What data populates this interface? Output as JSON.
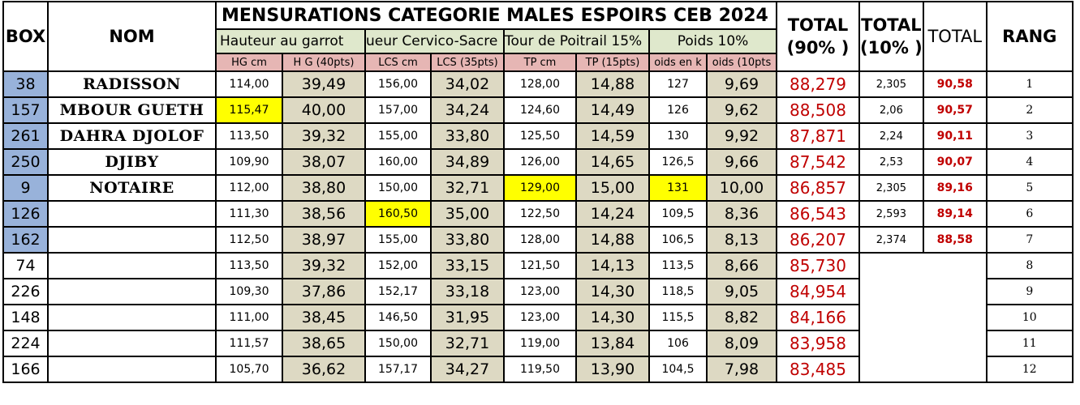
{
  "title": "MENSURATIONS CATEGORIE MALES ESPOIRS CEB 2024",
  "headers": {
    "box": "BOX",
    "nom": "NOM",
    "groups": [
      "Hauteur au garrot",
      "ueur Cervico-Sacre",
      "Tour de Poitrail 15%",
      "Poids 10%"
    ],
    "units": [
      "HG cm",
      "H G (40pts)",
      "LCS cm",
      "LCS (35pts)",
      "TP cm",
      "TP (15pts)",
      "oids en k",
      "oids (10pts"
    ],
    "total90_line1": "TOTAL",
    "total90_line2": "(90% )",
    "total10_line1": "TOTAL",
    "total10_line2": "(10% )",
    "total": "TOTAL",
    "rang": "RANG"
  },
  "rows": [
    {
      "box": "38",
      "nom": "RADISSON",
      "hg": "114,00",
      "hgp": "39,49",
      "lcs": "156,00",
      "lcsp": "34,02",
      "tp": "128,00",
      "tpp": "14,88",
      "pds": "127",
      "pdsp": "9,69",
      "t90": "88,279",
      "t10": "2,305",
      "total": "90,58",
      "rang": "1"
    },
    {
      "box": "157",
      "nom": "MBOUR GUETH",
      "hg": "115,47",
      "hgp": "40,00",
      "lcs": "157,00",
      "lcsp": "34,24",
      "tp": "124,60",
      "tpp": "14,49",
      "pds": "126",
      "pdsp": "9,62",
      "t90": "88,508",
      "t10": "2,06",
      "total": "90,57",
      "rang": "2"
    },
    {
      "box": "261",
      "nom": "DAHRA DJOLOF",
      "hg": "113,50",
      "hgp": "39,32",
      "lcs": "155,00",
      "lcsp": "33,80",
      "tp": "125,50",
      "tpp": "14,59",
      "pds": "130",
      "pdsp": "9,92",
      "t90": "87,871",
      "t10": "2,24",
      "total": "90,11",
      "rang": "3"
    },
    {
      "box": "250",
      "nom": "DJIBY",
      "hg": "109,90",
      "hgp": "38,07",
      "lcs": "160,00",
      "lcsp": "34,89",
      "tp": "126,00",
      "tpp": "14,65",
      "pds": "126,5",
      "pdsp": "9,66",
      "t90": "87,542",
      "t10": "2,53",
      "total": "90,07",
      "rang": "4"
    },
    {
      "box": "9",
      "nom": "NOTAIRE",
      "hg": "112,00",
      "hgp": "38,80",
      "lcs": "150,00",
      "lcsp": "32,71",
      "tp": "129,00",
      "tpp": "15,00",
      "pds": "131",
      "pdsp": "10,00",
      "t90": "86,857",
      "t10": "2,305",
      "total": "89,16",
      "rang": "5"
    },
    {
      "box": "126",
      "nom": "",
      "hg": "111,30",
      "hgp": "38,56",
      "lcs": "160,50",
      "lcsp": "35,00",
      "tp": "122,50",
      "tpp": "14,24",
      "pds": "109,5",
      "pdsp": "8,36",
      "t90": "86,543",
      "t10": "2,593",
      "total": "89,14",
      "rang": "6"
    },
    {
      "box": "162",
      "nom": "",
      "hg": "112,50",
      "hgp": "38,97",
      "lcs": "155,00",
      "lcsp": "33,80",
      "tp": "128,00",
      "tpp": "14,88",
      "pds": "106,5",
      "pdsp": "8,13",
      "t90": "86,207",
      "t10": "2,374",
      "total": "88,58",
      "rang": "7"
    },
    {
      "box": "74",
      "nom": "",
      "hg": "113,50",
      "hgp": "39,32",
      "lcs": "152,00",
      "lcsp": "33,15",
      "tp": "121,50",
      "tpp": "14,13",
      "pds": "113,5",
      "pdsp": "8,66",
      "t90": "85,730",
      "rang": "8"
    },
    {
      "box": "226",
      "nom": "",
      "hg": "109,30",
      "hgp": "37,86",
      "lcs": "152,17",
      "lcsp": "33,18",
      "tp": "123,00",
      "tpp": "14,30",
      "pds": "118,5",
      "pdsp": "9,05",
      "t90": "84,954",
      "rang": "9"
    },
    {
      "box": "148",
      "nom": "",
      "hg": "111,00",
      "hgp": "38,45",
      "lcs": "146,50",
      "lcsp": "31,95",
      "tp": "123,00",
      "tpp": "14,30",
      "pds": "115,5",
      "pdsp": "8,82",
      "t90": "84,166",
      "rang": "10"
    },
    {
      "box": "224",
      "nom": "",
      "hg": "111,57",
      "hgp": "38,65",
      "lcs": "150,00",
      "lcsp": "32,71",
      "tp": "119,00",
      "tpp": "13,84",
      "pds": "106",
      "pdsp": "8,09",
      "t90": "83,958",
      "rang": "11"
    },
    {
      "box": "166",
      "nom": "",
      "hg": "105,70",
      "hgp": "36,62",
      "lcs": "157,17",
      "lcsp": "34,27",
      "tp": "119,50",
      "tpp": "13,90",
      "pds": "104,5",
      "pdsp": "7,98",
      "t90": "83,485",
      "rang": "12"
    }
  ],
  "colors": {
    "box_highlight": "#98b2da",
    "group_header": "#dfe8cc",
    "unit_header": "#e6b6b4",
    "points_cell": "#ddd9c3",
    "max_highlight": "#ffff00",
    "total_text": "#c00000"
  }
}
